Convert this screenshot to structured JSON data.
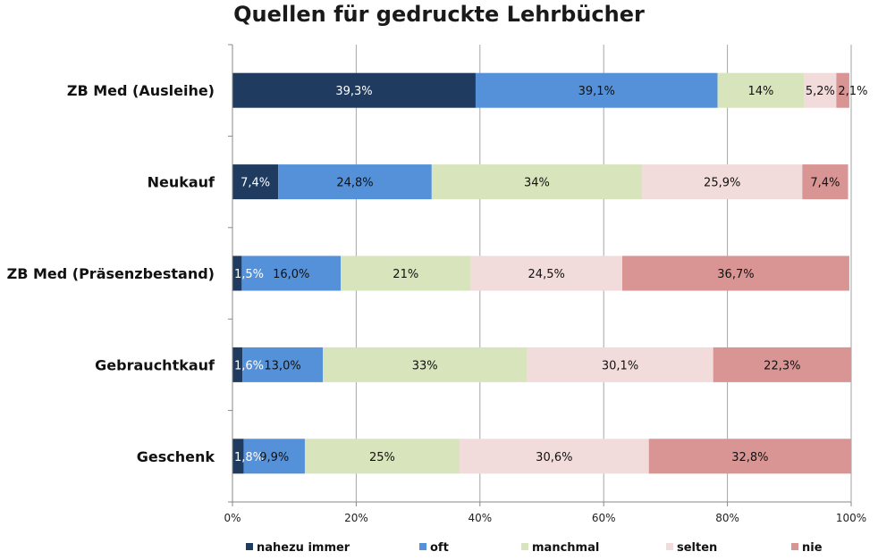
{
  "chart_data": {
    "type": "bar",
    "orientation": "horizontal",
    "stacked": true,
    "title": "Quellen für gedruckte Lehrbücher",
    "categories": [
      "ZB Med (Ausleihe)",
      "Neukauf",
      "ZB Med (Präsenzbestand)",
      "Gebrauchtkauf",
      "Geschenk"
    ],
    "series": [
      {
        "name": "nahezu immer",
        "color": "#1f3b5f",
        "label_color": "#ffffff",
        "values": [
          39.3,
          7.4,
          1.5,
          1.6,
          1.8
        ],
        "labels": [
          "39,3%",
          "7,4%",
          "1,5%",
          "1,6%",
          "1,8%"
        ]
      },
      {
        "name": "oft",
        "color": "#5591d8",
        "label_color": "#111111",
        "values": [
          39.1,
          24.8,
          16.0,
          13.0,
          9.9
        ],
        "labels": [
          "39,1%",
          "24,8%",
          "16,0%",
          "13,0%",
          "9,9%"
        ]
      },
      {
        "name": "manchmal",
        "color": "#d8e4bc",
        "label_color": "#111111",
        "values": [
          14,
          34,
          21,
          33,
          25
        ],
        "labels": [
          "14%",
          "34%",
          "21%",
          "33%",
          "25%"
        ]
      },
      {
        "name": "selten",
        "color": "#f2dcdb",
        "label_color": "#111111",
        "values": [
          5.2,
          25.9,
          24.5,
          30.1,
          30.6
        ],
        "labels": [
          "5,2%",
          "25,9%",
          "24,5%",
          "30,1%",
          "30,6%"
        ]
      },
      {
        "name": "nie",
        "color": "#d99594",
        "label_color": "#111111",
        "values": [
          2.1,
          7.4,
          36.7,
          22.3,
          32.8
        ],
        "labels": [
          "2,1%",
          "7,4%",
          "36,7%",
          "22,3%",
          "32,8%"
        ]
      }
    ],
    "xlim": [
      0,
      100
    ],
    "xticks": [
      "0%",
      "20%",
      "40%",
      "60%",
      "80%",
      "100%"
    ],
    "grid": true,
    "legend_position": "bottom"
  }
}
